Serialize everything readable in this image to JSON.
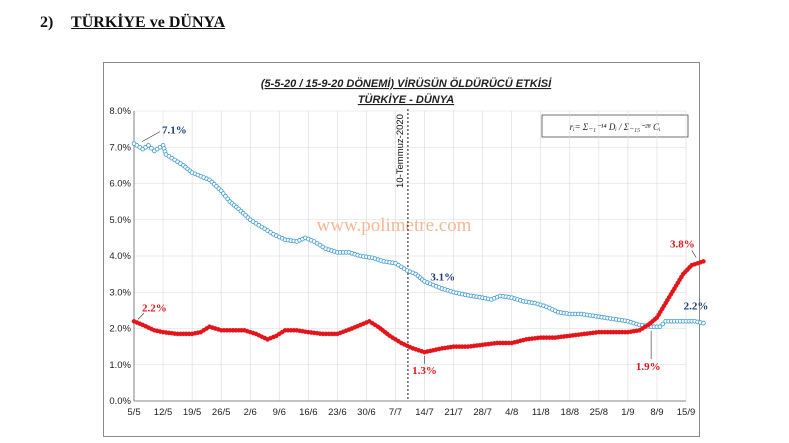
{
  "heading": {
    "number": "2)",
    "text": "TÜRKİYE ve DÜNYA"
  },
  "chart_data": {
    "type": "line",
    "title": "(5-5-20 / 15-9-20 DÖNEMİ) VİRÜSÜN ÖLDÜRÜCÜ ETKİSİ",
    "subtitle": "TÜRKİYE - DÜNYA",
    "xlabel": "",
    "ylabel": "",
    "ylim": [
      0,
      8
    ],
    "y_ticks": [
      "0.0%",
      "1.0%",
      "2.0%",
      "3.0%",
      "4.0%",
      "5.0%",
      "6.0%",
      "7.0%",
      "8.0%"
    ],
    "x_ticks": [
      "5/5",
      "12/5",
      "19/5",
      "26/5",
      "2/6",
      "9/6",
      "16/6",
      "23/6",
      "30/6",
      "7/7",
      "14/7",
      "21/7",
      "28/7",
      "4/8",
      "11/8",
      "18/8",
      "25/8",
      "1/9",
      "8/9",
      "15/9"
    ],
    "grid": true,
    "legend": "none",
    "vertical_marker": {
      "x": "10/7",
      "label": "10-Temmuz-2020"
    },
    "formula": "rᵢ= Σ₋₁⁻¹⁴ Dᵢ / Σ₋₁₅⁻²⁸ Cᵢ",
    "watermark": "www.polimetre.com",
    "series": [
      {
        "color": "#3d9ad1",
        "marker": "circle-open",
        "points": [
          [
            0,
            7.1
          ],
          [
            0.3,
            6.95
          ],
          [
            0.5,
            7.05
          ],
          [
            0.7,
            6.9
          ],
          [
            0.9,
            7.0
          ],
          [
            1,
            7.05
          ],
          [
            1.1,
            6.8
          ],
          [
            1.3,
            6.7
          ],
          [
            1.5,
            6.6
          ],
          [
            1.7,
            6.5
          ],
          [
            2,
            6.3
          ],
          [
            2.3,
            6.2
          ],
          [
            2.6,
            6.1
          ],
          [
            3,
            5.8
          ],
          [
            3.3,
            5.5
          ],
          [
            3.6,
            5.3
          ],
          [
            4,
            5.0
          ],
          [
            4.4,
            4.8
          ],
          [
            4.8,
            4.6
          ],
          [
            5.2,
            4.45
          ],
          [
            5.6,
            4.4
          ],
          [
            5.9,
            4.5
          ],
          [
            6.2,
            4.4
          ],
          [
            6.6,
            4.2
          ],
          [
            7,
            4.1
          ],
          [
            7.4,
            4.1
          ],
          [
            7.8,
            4.0
          ],
          [
            8.2,
            3.95
          ],
          [
            8.6,
            3.85
          ],
          [
            9,
            3.8
          ],
          [
            9.4,
            3.6
          ],
          [
            9.7,
            3.5
          ],
          [
            10,
            3.3
          ],
          [
            10.3,
            3.2
          ],
          [
            10.6,
            3.1
          ],
          [
            11,
            3.0
          ],
          [
            11.3,
            2.95
          ],
          [
            11.6,
            2.9
          ],
          [
            12,
            2.85
          ],
          [
            12.3,
            2.8
          ],
          [
            12.6,
            2.9
          ],
          [
            13,
            2.85
          ],
          [
            13.4,
            2.75
          ],
          [
            13.8,
            2.7
          ],
          [
            14.2,
            2.6
          ],
          [
            14.6,
            2.45
          ],
          [
            15,
            2.4
          ],
          [
            15.4,
            2.4
          ],
          [
            15.8,
            2.35
          ],
          [
            16.2,
            2.3
          ],
          [
            16.6,
            2.25
          ],
          [
            17,
            2.2
          ],
          [
            17.4,
            2.1
          ],
          [
            17.8,
            2.05
          ],
          [
            18.1,
            2.05
          ],
          [
            18.3,
            2.2
          ],
          [
            18.6,
            2.2
          ],
          [
            19,
            2.2
          ],
          [
            19.3,
            2.2
          ],
          [
            19.6,
            2.15
          ]
        ]
      },
      {
        "color": "#e3151a",
        "marker": "circle-filled",
        "points": [
          [
            0,
            2.2
          ],
          [
            0.3,
            2.1
          ],
          [
            0.7,
            1.95
          ],
          [
            1,
            1.9
          ],
          [
            1.5,
            1.85
          ],
          [
            2,
            1.85
          ],
          [
            2.3,
            1.9
          ],
          [
            2.6,
            2.05
          ],
          [
            3,
            1.95
          ],
          [
            3.4,
            1.95
          ],
          [
            3.8,
            1.95
          ],
          [
            4.2,
            1.85
          ],
          [
            4.6,
            1.7
          ],
          [
            4.9,
            1.8
          ],
          [
            5.2,
            1.95
          ],
          [
            5.6,
            1.95
          ],
          [
            6,
            1.9
          ],
          [
            6.5,
            1.85
          ],
          [
            7,
            1.85
          ],
          [
            7.5,
            2.0
          ],
          [
            7.8,
            2.1
          ],
          [
            8.1,
            2.2
          ],
          [
            8.4,
            2.05
          ],
          [
            8.8,
            1.8
          ],
          [
            9.2,
            1.6
          ],
          [
            9.6,
            1.45
          ],
          [
            10,
            1.35
          ],
          [
            10.3,
            1.4
          ],
          [
            10.6,
            1.45
          ],
          [
            11,
            1.5
          ],
          [
            11.5,
            1.5
          ],
          [
            12,
            1.55
          ],
          [
            12.5,
            1.6
          ],
          [
            13,
            1.6
          ],
          [
            13.5,
            1.7
          ],
          [
            14,
            1.75
          ],
          [
            14.5,
            1.75
          ],
          [
            15,
            1.8
          ],
          [
            15.5,
            1.85
          ],
          [
            16,
            1.9
          ],
          [
            16.5,
            1.9
          ],
          [
            17,
            1.9
          ],
          [
            17.4,
            1.95
          ],
          [
            17.7,
            2.1
          ],
          [
            18,
            2.3
          ],
          [
            18.3,
            2.7
          ],
          [
            18.6,
            3.1
          ],
          [
            18.9,
            3.5
          ],
          [
            19.2,
            3.75
          ],
          [
            19.4,
            3.8
          ],
          [
            19.6,
            3.85
          ]
        ]
      }
    ],
    "annotations": {
      "blue_start": "7.1%",
      "blue_mid": "3.1%",
      "blue_end": "2.2%",
      "red_start": "2.2%",
      "red_min": "1.3%",
      "red_low": "1.9%",
      "red_end": "3.8%"
    }
  }
}
